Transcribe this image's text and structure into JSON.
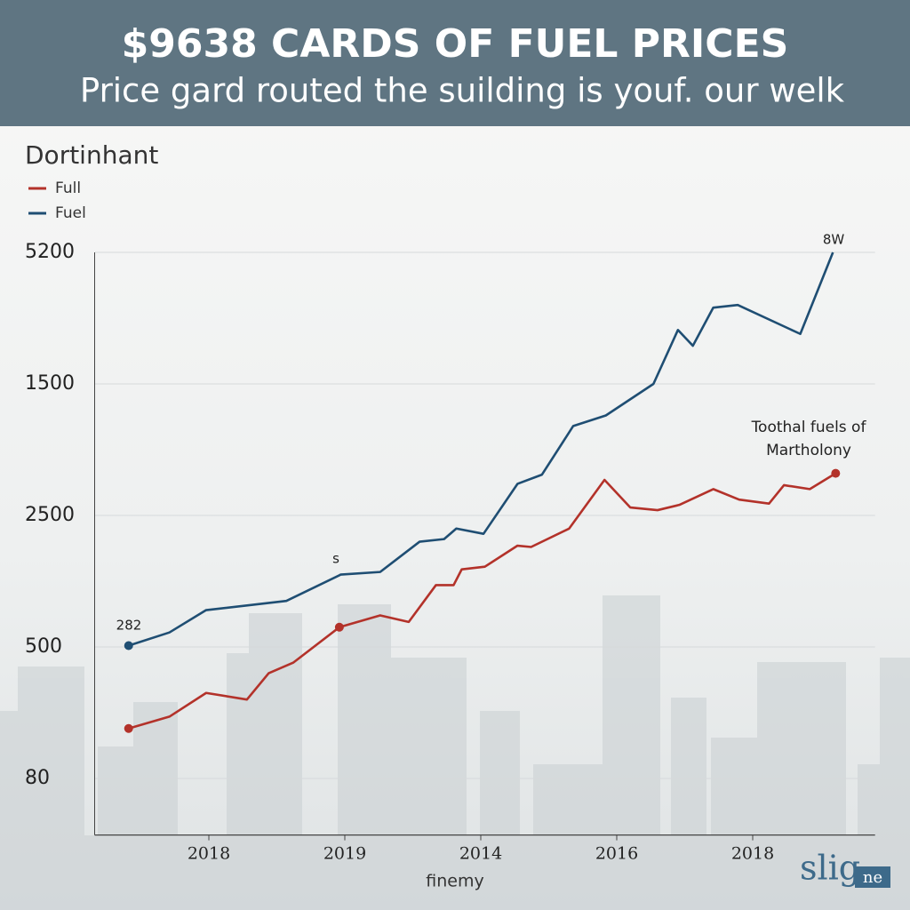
{
  "chart_data": {
    "type": "line",
    "title": "$9638 CARDS OF FUEL PRICES",
    "subtitle": "Price gard routed the suilding is youf. our welk",
    "legend_title": "Dortinhant",
    "x_label": "finemy",
    "watermark": [
      "slig",
      "ne"
    ],
    "annotations": [
      "282",
      "s",
      "8W",
      "Toothal fuels of",
      "Martholony"
    ],
    "xlim": [
      0.16,
      5.9
    ],
    "xticks": [
      {
        "value": 1,
        "label": "2018"
      },
      {
        "value": 2,
        "label": "2019"
      },
      {
        "value": 3,
        "label": "2014"
      },
      {
        "value": 4,
        "label": "2016"
      },
      {
        "value": 5,
        "label": "2018"
      }
    ],
    "ylim": [
      -0.43,
      4
    ],
    "yticks": [
      {
        "value": 4,
        "label": "5200"
      },
      {
        "value": 3,
        "label": "1500"
      },
      {
        "value": 2,
        "label": "2500"
      },
      {
        "value": 1,
        "label": "500"
      },
      {
        "value": 0,
        "label": "80"
      }
    ],
    "grid": true,
    "series": [
      {
        "name": "Full",
        "color": "#b3322a",
        "x": [
          0.41,
          0.71,
          0.98,
          1.28,
          1.44,
          1.62,
          1.96,
          2.26,
          2.47,
          2.67,
          2.8,
          2.86,
          3.03,
          3.27,
          3.37,
          3.65,
          3.91,
          4.1,
          4.3,
          4.46,
          4.71,
          4.9,
          5.12,
          5.23,
          5.42,
          5.61
        ],
        "values": [
          0.38,
          0.47,
          0.65,
          0.6,
          0.8,
          0.88,
          1.15,
          1.24,
          1.19,
          1.47,
          1.47,
          1.59,
          1.61,
          1.77,
          1.76,
          1.9,
          2.27,
          2.06,
          2.04,
          2.08,
          2.2,
          2.12,
          2.09,
          2.23,
          2.2,
          2.32
        ],
        "marker_points": [
          0,
          6,
          25
        ]
      },
      {
        "name": "Fuel",
        "color": "#1f4e73",
        "x": [
          0.41,
          0.71,
          0.98,
          1.57,
          1.97,
          2.26,
          2.55,
          2.73,
          2.82,
          3.02,
          3.27,
          3.45,
          3.68,
          3.92,
          4.27,
          4.45,
          4.56,
          4.71,
          4.89,
          5.35,
          5.59
        ],
        "values": [
          1.01,
          1.11,
          1.28,
          1.35,
          1.55,
          1.57,
          1.8,
          1.82,
          1.9,
          1.86,
          2.24,
          2.31,
          2.68,
          2.76,
          3.0,
          3.41,
          3.29,
          3.58,
          3.6,
          3.38,
          4.0
        ],
        "marker_points": [
          0
        ]
      }
    ]
  }
}
